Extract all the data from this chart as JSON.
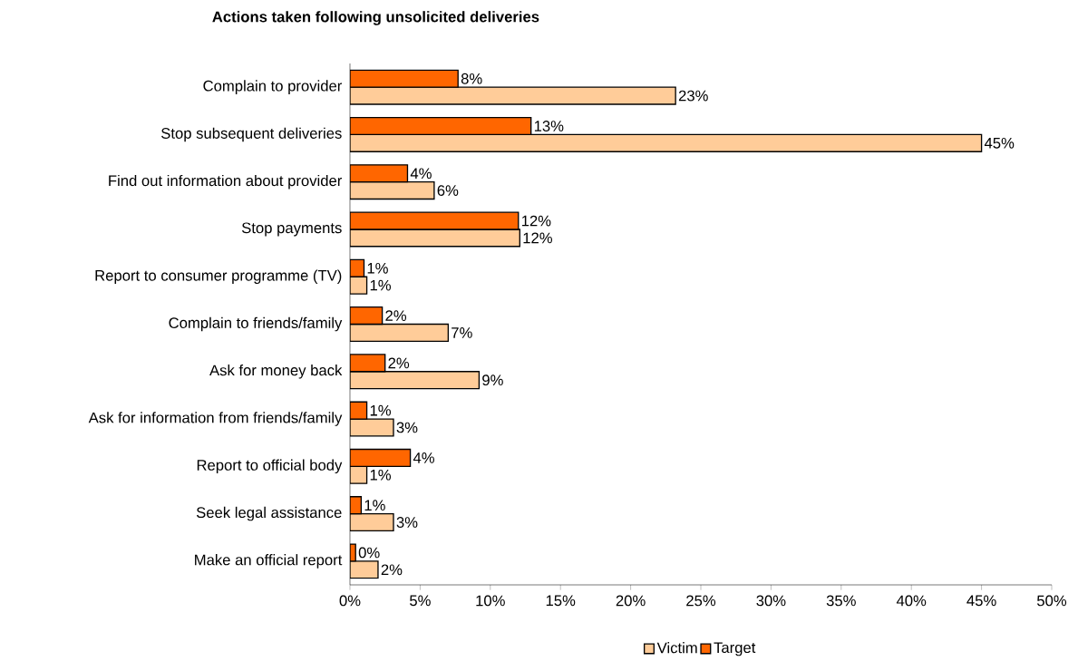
{
  "chart_data": {
    "type": "bar",
    "orientation": "horizontal",
    "title": "Actions taken following unsolicited deliveries",
    "categories": [
      "Complain to provider",
      "Stop subsequent deliveries",
      "Find out information about provider",
      "Stop payments",
      "Report to consumer programme (TV)",
      "Complain to friends/family",
      "Ask for money back",
      "Ask for information from friends/family",
      "Report to official body",
      "Seek legal assistance",
      "Make an official report"
    ],
    "series": [
      {
        "name": "Victim",
        "color": "#ffcc99",
        "values": [
          23.2,
          45.0,
          6.0,
          12.1,
          1.2,
          7.0,
          9.2,
          3.1,
          1.2,
          3.1,
          2.0
        ],
        "value_labels": [
          "23%",
          "45%",
          "6%",
          "12%",
          "1%",
          "7%",
          "9%",
          "3%",
          "1%",
          "3%",
          "2%"
        ]
      },
      {
        "name": "Target",
        "color": "#ff6600",
        "values": [
          7.7,
          12.9,
          4.1,
          12.0,
          1.0,
          2.3,
          2.5,
          1.2,
          4.3,
          0.8,
          0.4
        ],
        "value_labels": [
          "8%",
          "13%",
          "4%",
          "12%",
          "1%",
          "2%",
          "2%",
          "1%",
          "4%",
          "1%",
          "0%"
        ]
      }
    ],
    "xlim": [
      0,
      50
    ],
    "xticks": [
      {
        "value": 0,
        "label": "0%"
      },
      {
        "value": 5,
        "label": "5%"
      },
      {
        "value": 10,
        "label": "10%"
      },
      {
        "value": 15,
        "label": "15%"
      },
      {
        "value": 20,
        "label": "20%"
      },
      {
        "value": 25,
        "label": "25%"
      },
      {
        "value": 30,
        "label": "30%"
      },
      {
        "value": 35,
        "label": "35%"
      },
      {
        "value": 40,
        "label": "40%"
      },
      {
        "value": 45,
        "label": "45%"
      },
      {
        "value": 50,
        "label": "50%"
      }
    ],
    "grid": false,
    "legend": "bottom"
  }
}
